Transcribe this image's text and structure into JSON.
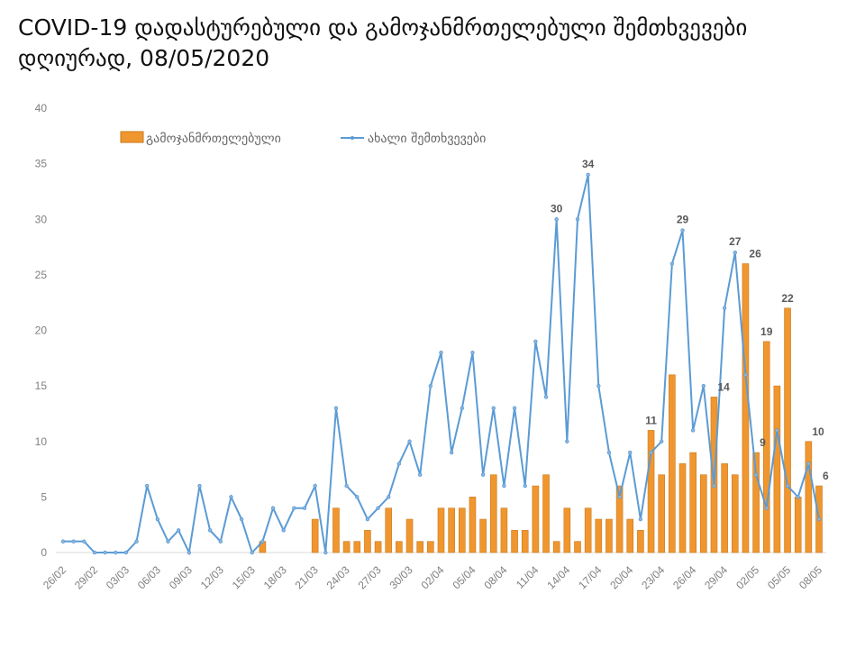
{
  "chart_data": {
    "type": "bar+line",
    "title": "COVID-19 დადასტურებული და გამოჯანმრთელებული შემთხვევები დღიურად, 08/05/2020",
    "xlabel": "",
    "ylabel": "",
    "ylim": [
      0,
      40
    ],
    "yticks": [
      0,
      5,
      10,
      15,
      20,
      25,
      30,
      35,
      40
    ],
    "grid": false,
    "legend_position": "top",
    "categories": [
      "26/02",
      "27/02",
      "28/02",
      "29/02",
      "01/03",
      "02/03",
      "03/03",
      "04/03",
      "05/03",
      "06/03",
      "07/03",
      "08/03",
      "09/03",
      "10/03",
      "11/03",
      "12/03",
      "13/03",
      "14/03",
      "15/03",
      "16/03",
      "17/03",
      "18/03",
      "19/03",
      "20/03",
      "21/03",
      "22/03",
      "23/03",
      "24/03",
      "25/03",
      "26/03",
      "27/03",
      "28/03",
      "29/03",
      "30/03",
      "31/03",
      "01/04",
      "02/04",
      "03/04",
      "04/04",
      "05/04",
      "06/04",
      "07/04",
      "08/04",
      "09/04",
      "10/04",
      "11/04",
      "12/04",
      "13/04",
      "14/04",
      "15/04",
      "16/04",
      "17/04",
      "18/04",
      "19/04",
      "20/04",
      "21/04",
      "22/04",
      "23/04",
      "24/04",
      "25/04",
      "26/04",
      "27/04",
      "28/04",
      "29/04",
      "30/04",
      "01/05",
      "02/05",
      "03/05",
      "04/05",
      "05/05",
      "06/05",
      "07/05",
      "08/05"
    ],
    "tick_every": 3,
    "series": [
      {
        "name": "გამოჯანმრთელებული",
        "kind": "bar",
        "color": "#F0962E",
        "values": [
          0,
          0,
          0,
          0,
          0,
          0,
          0,
          0,
          0,
          0,
          0,
          0,
          0,
          0,
          0,
          0,
          0,
          0,
          0,
          1,
          0,
          0,
          0,
          0,
          3,
          0,
          4,
          1,
          1,
          2,
          1,
          4,
          1,
          3,
          1,
          1,
          4,
          4,
          4,
          5,
          3,
          7,
          4,
          2,
          2,
          6,
          7,
          1,
          4,
          1,
          4,
          3,
          3,
          6,
          3,
          2,
          11,
          7,
          16,
          8,
          9,
          7,
          14,
          8,
          7,
          26,
          9,
          19,
          15,
          22,
          5,
          10,
          6
        ],
        "labeled_indices": [
          56,
          62,
          65,
          66,
          67,
          69,
          71,
          72
        ]
      },
      {
        "name": "ახალი შემთხვევები",
        "kind": "line",
        "color": "#5B9BD5",
        "values": [
          1,
          1,
          1,
          0,
          0,
          0,
          0,
          1,
          6,
          3,
          1,
          2,
          0,
          6,
          2,
          1,
          5,
          3,
          0,
          1,
          4,
          2,
          4,
          4,
          6,
          0,
          13,
          6,
          5,
          3,
          4,
          5,
          8,
          10,
          7,
          15,
          18,
          9,
          13,
          18,
          7,
          13,
          6,
          13,
          6,
          19,
          14,
          30,
          10,
          30,
          34,
          15,
          9,
          5,
          9,
          3,
          9,
          10,
          26,
          29,
          11,
          15,
          6,
          22,
          27,
          16,
          7,
          4,
          11,
          6,
          5,
          8,
          3
        ],
        "labeled_indices": [
          47,
          50,
          59,
          64
        ]
      }
    ]
  }
}
